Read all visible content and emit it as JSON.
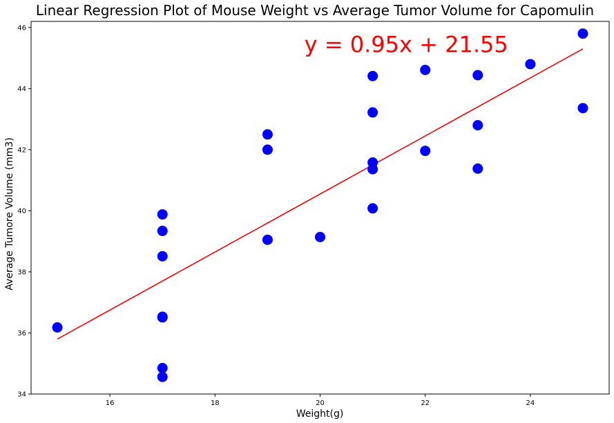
{
  "chart_data": {
    "type": "scatter",
    "title": "Linear Regression Plot of Mouse Weight vs Average Tumor Volume for Capomulin",
    "xlabel": "Weight(g)",
    "ylabel": "Average Tumore Volume (mm3)",
    "xlim": [
      14.5,
      25.5
    ],
    "ylim": [
      34,
      46.2
    ],
    "xticks": [
      16,
      18,
      20,
      22,
      24
    ],
    "yticks": [
      34,
      36,
      38,
      40,
      42,
      44,
      46
    ],
    "grid": false,
    "marker_color": "#0000ff",
    "line_color": "#ff0000",
    "points": [
      {
        "x": 15,
        "y": 36.18
      },
      {
        "x": 17,
        "y": 39.88
      },
      {
        "x": 17,
        "y": 39.34
      },
      {
        "x": 17,
        "y": 38.51
      },
      {
        "x": 17,
        "y": 36.51
      },
      {
        "x": 17,
        "y": 36.53
      },
      {
        "x": 17,
        "y": 34.85
      },
      {
        "x": 17,
        "y": 34.56
      },
      {
        "x": 19,
        "y": 42.5
      },
      {
        "x": 19,
        "y": 42.0
      },
      {
        "x": 19,
        "y": 39.05
      },
      {
        "x": 20,
        "y": 39.14
      },
      {
        "x": 21,
        "y": 44.41
      },
      {
        "x": 21,
        "y": 43.22
      },
      {
        "x": 21,
        "y": 41.58
      },
      {
        "x": 21,
        "y": 41.36
      },
      {
        "x": 21,
        "y": 40.08
      },
      {
        "x": 22,
        "y": 44.61
      },
      {
        "x": 22,
        "y": 41.96
      },
      {
        "x": 23,
        "y": 44.44
      },
      {
        "x": 23,
        "y": 42.8
      },
      {
        "x": 23,
        "y": 41.38
      },
      {
        "x": 24,
        "y": 44.8
      },
      {
        "x": 25,
        "y": 45.8
      },
      {
        "x": 25,
        "y": 43.36
      }
    ],
    "regression": {
      "slope": 0.95,
      "intercept": 21.55,
      "x_range": [
        15,
        25
      ],
      "equation_label": "y = 0.95x + 21.55",
      "equation_anchor": {
        "x": 19.7,
        "y": 45.2
      }
    }
  }
}
